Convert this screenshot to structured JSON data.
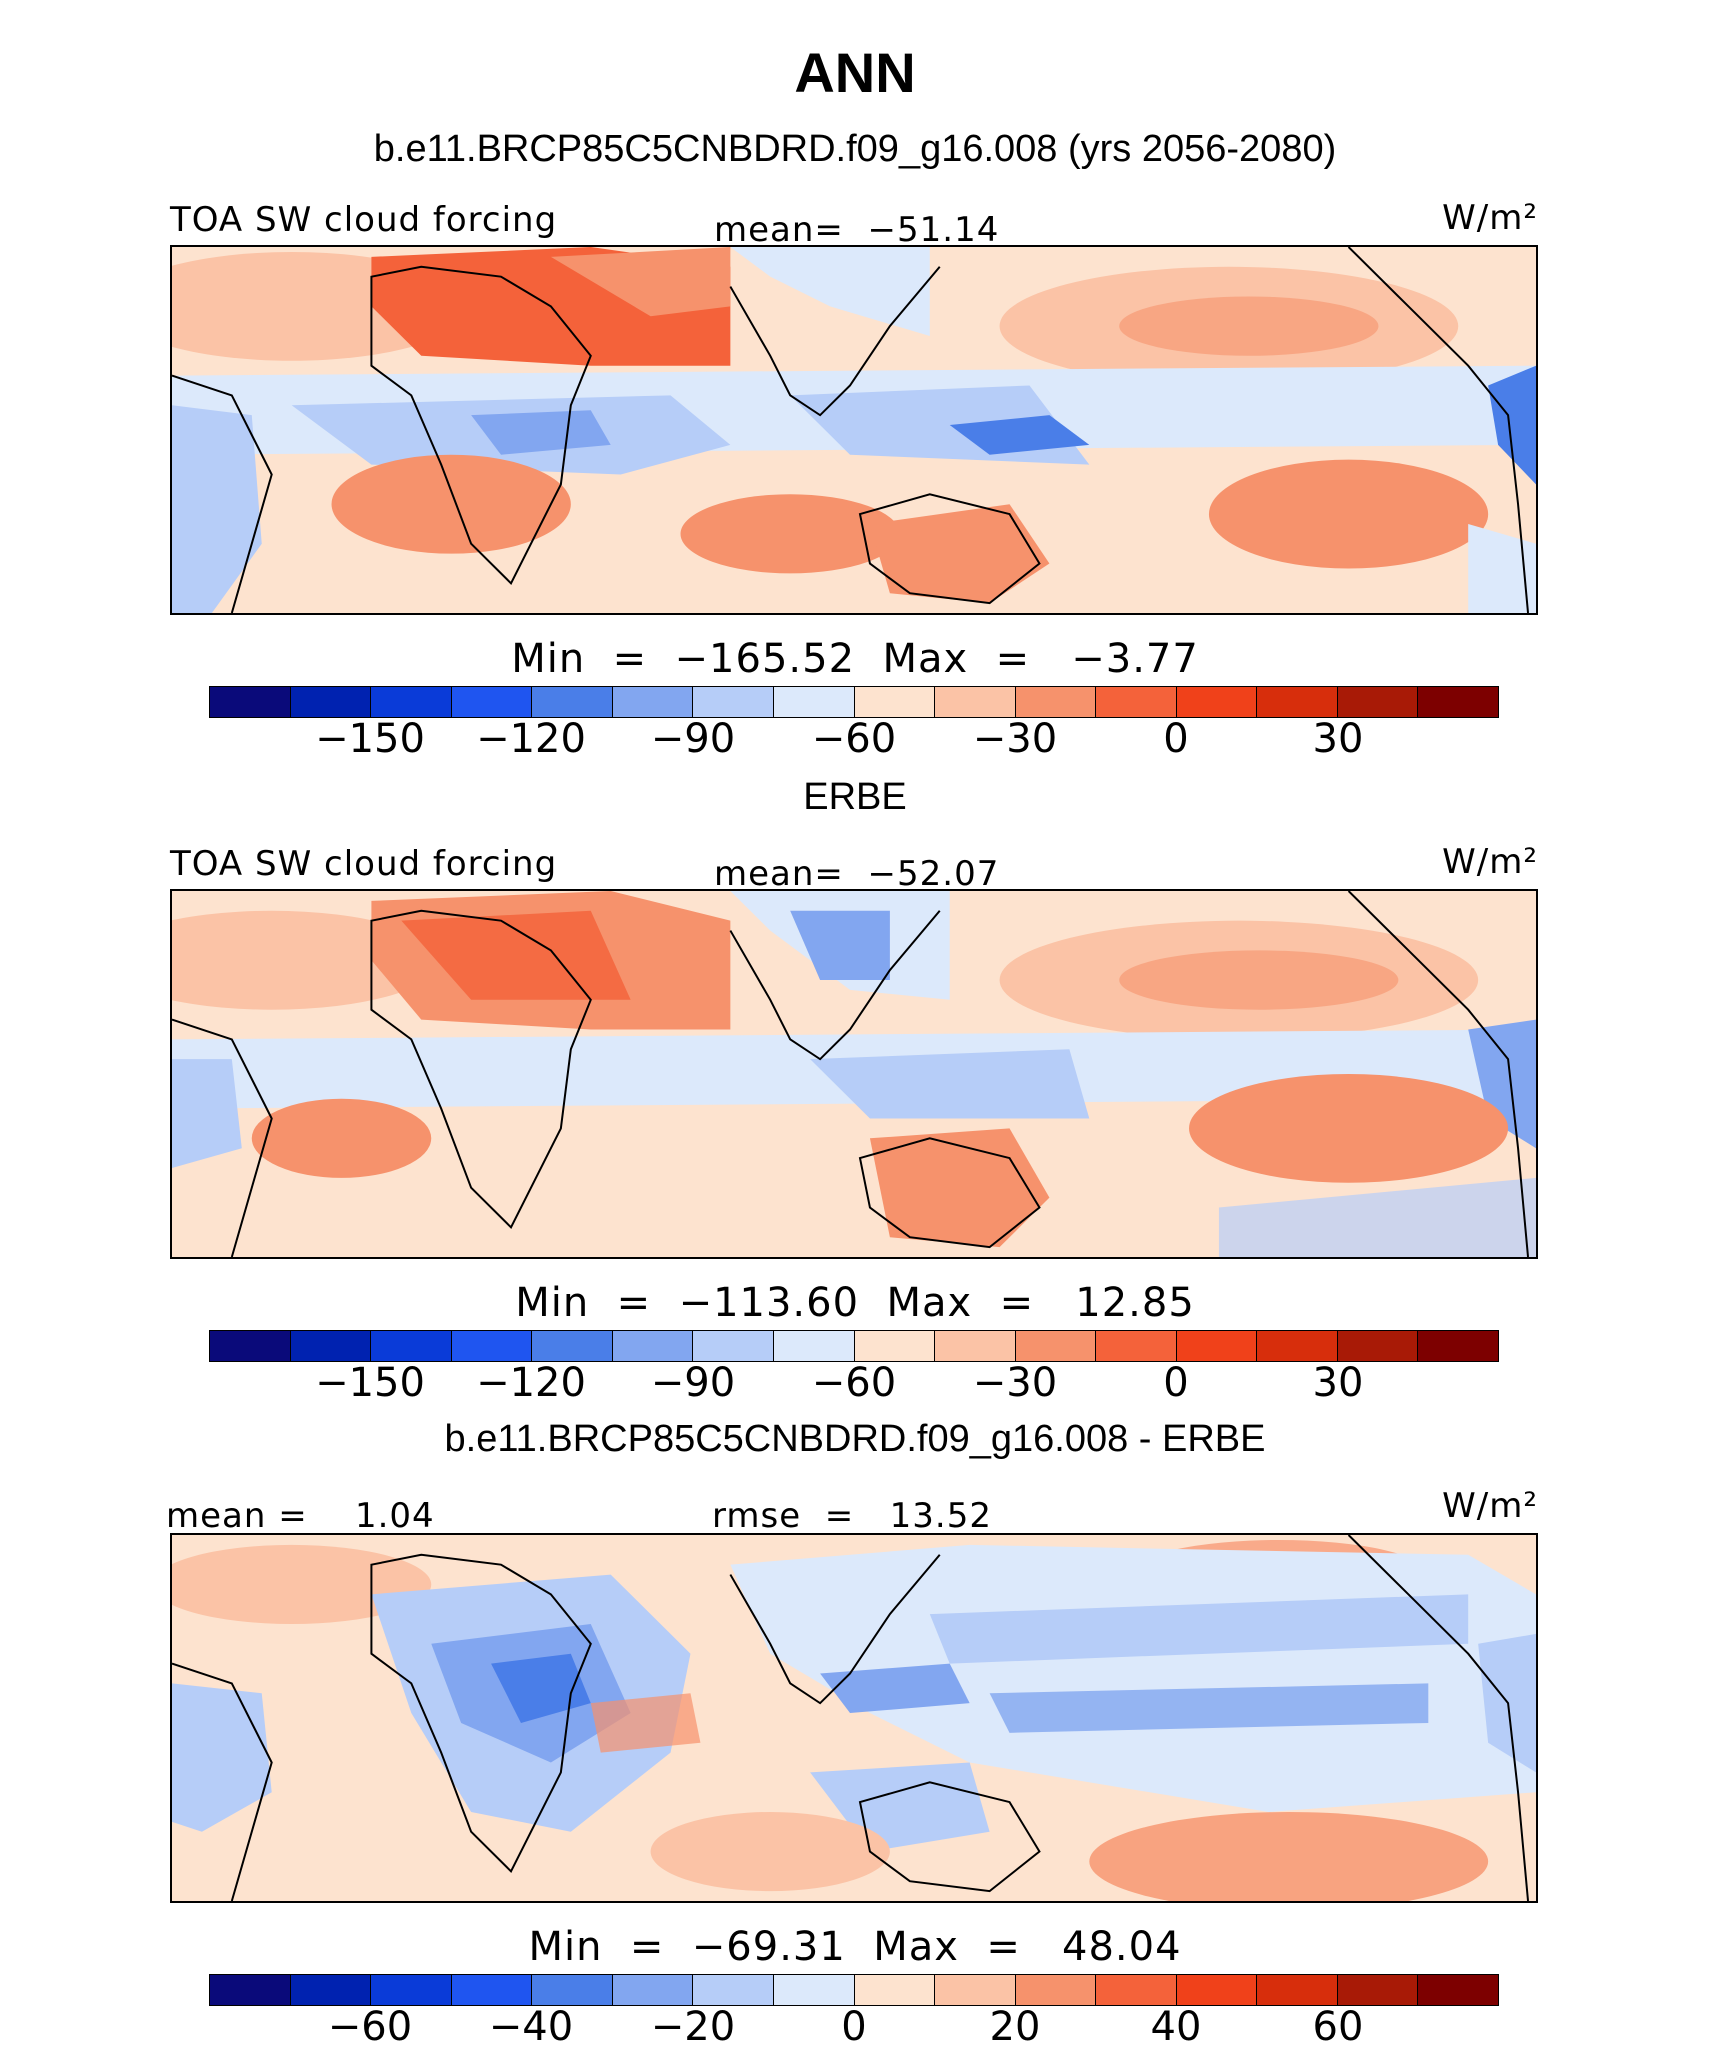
{
  "title": "ANN",
  "panels": [
    {
      "subtitle": "b.e11.BRCP85C5CNBDRD.f09_g16.008 (yrs 2056-2080)",
      "left_label": "TOA SW cloud forcing",
      "center_label": "mean=  −51.14",
      "units": "W/m²",
      "minmax": "Min  =  −165.52  Max  =   −3.77",
      "ticks": [
        "−150",
        "−120",
        "−90",
        "−60",
        "−30",
        "0",
        "30"
      ],
      "levels": [
        -150,
        -120,
        -90,
        -60,
        -30,
        0,
        30
      ]
    },
    {
      "subtitle": "ERBE",
      "left_label": "TOA SW cloud forcing",
      "center_label": "mean=  −52.07",
      "units": "W/m²",
      "minmax": "Min  =  −113.60  Max  =   12.85",
      "ticks": [
        "−150",
        "−120",
        "−90",
        "−60",
        "−30",
        "0",
        "30"
      ],
      "levels": [
        -150,
        -120,
        -90,
        -60,
        -30,
        0,
        30
      ]
    },
    {
      "subtitle": "b.e11.BRCP85C5CNBDRD.f09_g16.008 - ERBE",
      "left_label": "mean =    1.04",
      "center_label": "rmse  =   13.52",
      "units": "W/m²",
      "minmax": "Min  =  −69.31  Max  =   48.04",
      "ticks": [
        "−60",
        "−40",
        "−20",
        "0",
        "20",
        "40",
        "60"
      ],
      "levels": [
        -60,
        -40,
        -20,
        0,
        20,
        40,
        60
      ]
    }
  ],
  "colorbar_colors": [
    "#0a0a7a",
    "#0022b0",
    "#0a3bd8",
    "#1f55f0",
    "#4a7ee8",
    "#82a6f0",
    "#b6cdf8",
    "#dce9fb",
    "#fde3cf",
    "#fbc3a6",
    "#f6926c",
    "#f4623a",
    "#f0411a",
    "#d72e0c",
    "#a81a06",
    "#7d0000"
  ],
  "map_colors": {
    "ocean_base": "#fde3cf",
    "light_blue": "#dce9fb",
    "blue": "#b6cdf8",
    "mid_blue": "#82a6f0",
    "deep_blue": "#4a7ee8",
    "peach": "#fbc3a6",
    "salmon": "#f6926c",
    "orange": "#f4623a",
    "coast": "#000000"
  }
}
